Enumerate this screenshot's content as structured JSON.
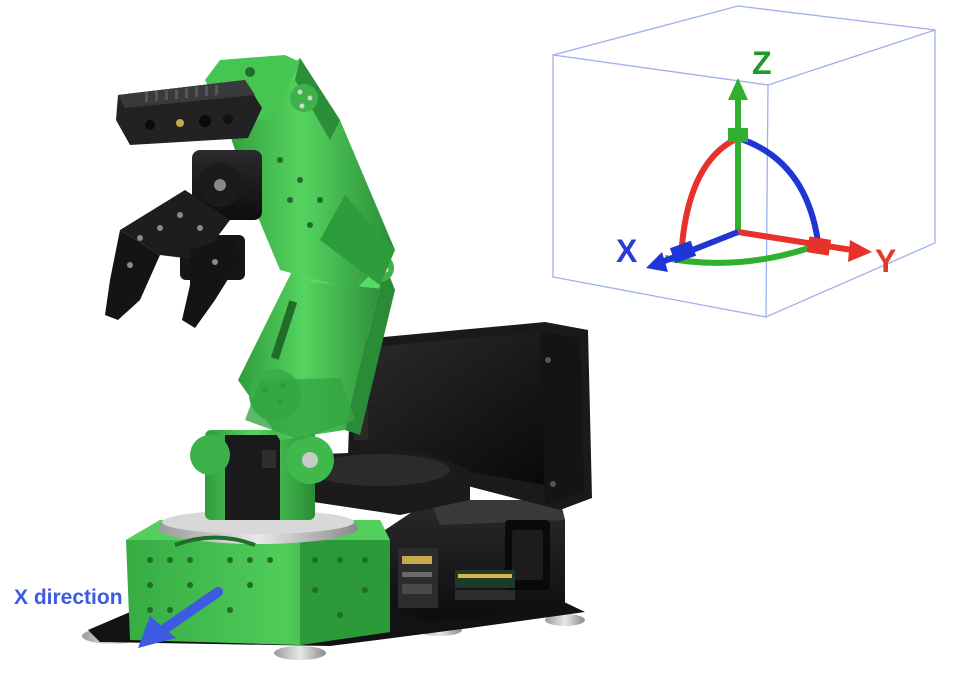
{
  "axes_diagram": {
    "z_label": "Z",
    "x_label": "X",
    "y_label": "Y",
    "colors": {
      "z": "#2fb02f",
      "x": "#1f35d6",
      "y": "#e8312b",
      "z_text": "#1f9a2a",
      "x_text": "#2b3bd9",
      "y_text": "#e33a2a",
      "box": "#9eb1ee"
    }
  },
  "direction_note": {
    "label": "X direction",
    "color": "#3c5be0"
  },
  "robot": {
    "arm_color": "#3cc04e",
    "dark_color": "#1c1c1e"
  }
}
